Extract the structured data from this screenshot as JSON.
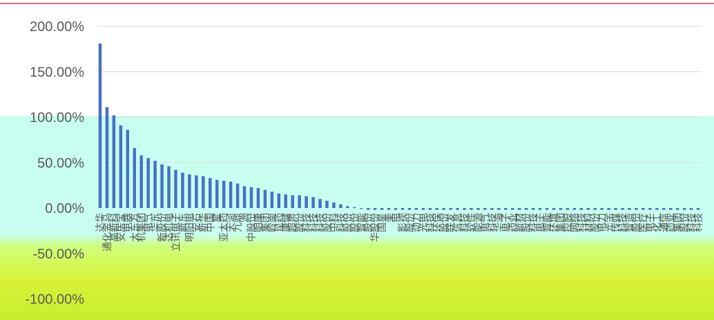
{
  "chart_data": {
    "type": "bar",
    "title": "",
    "xlabel": "",
    "ylabel": "",
    "ylim": [
      -0.5,
      2.0
    ],
    "y_tick_labels": [
      "200.00%",
      "150.00%",
      "100.00%",
      "50.00%",
      "0.00%",
      "-50.00%",
      "-100.00%"
    ],
    "y_tick_values": [
      2.0,
      1.5,
      1.0,
      0.5,
      0.0,
      -0.5,
      -1.0
    ],
    "grid": true,
    "legend": "none",
    "bar_color": "#4472c4",
    "categories": [
      "达华",
      "通化金马",
      "高新科",
      "安居宝",
      "电器",
      "大东方",
      "机集团",
      "电气",
      "华东",
      "新股份",
      "达机电",
      "立讯电子",
      "新东",
      "明阳电",
      "安石",
      "新华",
      "中国",
      "星",
      "亚太药",
      "天河",
      "九鼎",
      "洲",
      "中股份",
      "明康",
      "集团",
      "岭南",
      "昆药",
      "康健",
      "超声",
      "股份",
      "科技",
      "科技",
      "科技",
      "股份",
      "中科",
      "科技",
      "股份",
      "股份",
      "智能",
      "股份",
      "华股份",
      "国星",
      "美",
      "电",
      "影视",
      "股份",
      "动力",
      "光电",
      "科技",
      "环保",
      "股份",
      "联发",
      "信息",
      "科技",
      "软件",
      "能源",
      "电气",
      "科技",
      "华海",
      "电子",
      "药业",
      "新材",
      "股份",
      "科技",
      "电子",
      "智能",
      "环境",
      "集团",
      "控股",
      "网络",
      "科技",
      "材料",
      "股份",
      "电力",
      "光学",
      "传媒",
      "科技",
      "智造",
      "股份",
      "医疗",
      "电子",
      "化工",
      "通信",
      "药业",
      "集团",
      "股份",
      "科技",
      "科技"
    ],
    "values": [
      1.81,
      1.11,
      1.02,
      0.91,
      0.86,
      0.66,
      0.58,
      0.55,
      0.52,
      0.48,
      0.46,
      0.42,
      0.39,
      0.37,
      0.36,
      0.35,
      0.33,
      0.31,
      0.3,
      0.29,
      0.27,
      0.24,
      0.23,
      0.22,
      0.2,
      0.18,
      0.16,
      0.15,
      0.14,
      0.14,
      0.13,
      0.12,
      0.1,
      0.08,
      0.06,
      0.04,
      0.02,
      0.01,
      -0.01,
      -0.02,
      -0.02,
      -0.02,
      -0.02,
      -0.02,
      -0.02,
      -0.02,
      -0.02,
      -0.02,
      -0.02,
      -0.02,
      -0.02,
      -0.02,
      -0.02,
      -0.02,
      -0.02,
      -0.02,
      -0.02,
      -0.02,
      -0.02,
      -0.02,
      -0.02,
      -0.02,
      -0.02,
      -0.02,
      -0.02,
      -0.02,
      -0.02,
      -0.02,
      -0.02,
      -0.02,
      -0.02,
      -0.02,
      -0.02,
      -0.02,
      -0.02,
      -0.02,
      -0.02,
      -0.02,
      -0.02,
      -0.02,
      -0.02,
      -0.02,
      -0.02,
      -0.02,
      -0.02,
      -0.02,
      -0.02,
      -0.02
    ]
  }
}
